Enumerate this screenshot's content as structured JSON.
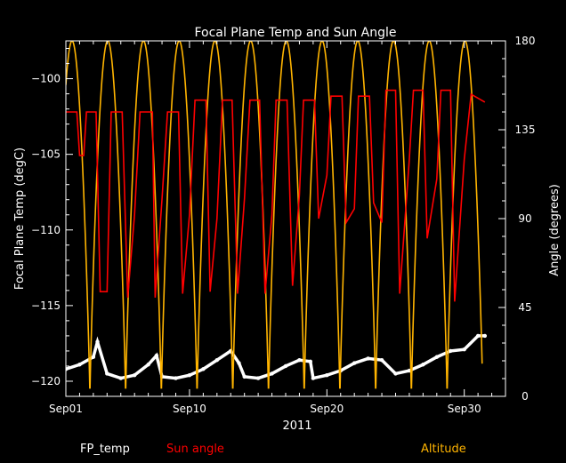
{
  "chart_data": {
    "type": "line",
    "title": "Focal Plane Temp and Sun Angle",
    "xlabel": "2011",
    "ylabel_left": "Focal Plane Temp (degC)",
    "ylabel_right": "Angle (degrees)",
    "x_unit": "day of September 2011",
    "xlim": [
      1,
      33
    ],
    "ylim_left": [
      -121,
      -97.5
    ],
    "ylim_right": [
      0,
      180
    ],
    "x_ticks": [
      {
        "value": 1,
        "label": "Sep01"
      },
      {
        "value": 10,
        "label": "Sep10"
      },
      {
        "value": 20,
        "label": "Sep20"
      },
      {
        "value": 30,
        "label": "Sep30"
      }
    ],
    "y_left_ticks": [
      -100,
      -105,
      -110,
      -115,
      -120
    ],
    "y_right_ticks": [
      0,
      45,
      90,
      135,
      180
    ],
    "grid": false,
    "legend_position": "bottom",
    "colors": {
      "background": "#000000",
      "axes": "#ffffff",
      "fp_temp": "#ffffff",
      "sun_angle": "#ff0000",
      "altitude": "#ffb400"
    },
    "series": [
      {
        "name": "FP_temp",
        "axis": "left",
        "style": "points",
        "x": [
          1.0,
          2.0,
          3.0,
          3.3,
          4.0,
          5.0,
          6.0,
          7.0,
          7.6,
          8.0,
          9.0,
          10.0,
          11.0,
          12.0,
          13.0,
          13.6,
          14.0,
          15.0,
          16.0,
          17.0,
          18.0,
          18.8,
          19.0,
          20.0,
          21.0,
          22.0,
          23.0,
          24.0,
          25.0,
          26.0,
          27.0,
          28.0,
          29.0,
          30.0,
          31.0,
          31.5
        ],
        "y": [
          -119.2,
          -118.9,
          -118.4,
          -117.4,
          -119.5,
          -119.8,
          -119.6,
          -118.9,
          -118.3,
          -119.7,
          -119.8,
          -119.6,
          -119.2,
          -118.6,
          -118.0,
          -118.8,
          -119.7,
          -119.8,
          -119.5,
          -119.0,
          -118.6,
          -118.7,
          -119.8,
          -119.6,
          -119.3,
          -118.8,
          -118.5,
          -118.6,
          -119.5,
          -119.3,
          -118.9,
          -118.4,
          -118.0,
          -117.9,
          -117.0,
          -117.0
        ]
      },
      {
        "name": "Sun angle",
        "axis": "right",
        "style": "line",
        "x": [
          1.0,
          1.8,
          2.0,
          2.3,
          2.5,
          3.2,
          3.5,
          4.0,
          4.3,
          5.1,
          5.5,
          6.0,
          6.4,
          7.3,
          7.5,
          8.0,
          8.4,
          9.2,
          9.5,
          10.0,
          10.4,
          11.2,
          11.5,
          12.0,
          12.4,
          13.1,
          13.5,
          14.0,
          14.4,
          15.1,
          15.5,
          16.0,
          16.3,
          17.1,
          17.5,
          18.0,
          18.3,
          19.1,
          19.4,
          20.0,
          20.3,
          21.1,
          21.4,
          22.0,
          22.3,
          23.1,
          23.4,
          24.0,
          24.3,
          25.0,
          25.3,
          26.0,
          26.3,
          27.0,
          27.3,
          28.0,
          28.3,
          29.0,
          29.3,
          30.0,
          30.5,
          31.5
        ],
        "y": [
          144,
          144,
          122,
          122,
          144,
          144,
          53,
          53,
          144,
          144,
          50,
          92,
          144,
          144,
          50,
          100,
          144,
          144,
          52,
          92,
          150,
          150,
          53,
          90,
          150,
          150,
          52,
          100,
          150,
          150,
          52,
          92,
          150,
          150,
          56,
          102,
          150,
          150,
          90,
          112,
          152,
          152,
          88,
          95,
          152,
          152,
          98,
          88,
          155,
          155,
          52,
          120,
          155,
          155,
          80,
          110,
          155,
          155,
          48,
          120,
          153,
          149
        ]
      },
      {
        "name": "Altitude",
        "axis": "right",
        "style": "line",
        "period_days": 2.6,
        "peaks_x": [
          1.45,
          4.05,
          6.65,
          9.25,
          11.85,
          14.45,
          17.05,
          19.65,
          22.25,
          24.85,
          27.45,
          30.05
        ],
        "minima_x": [
          2.75,
          5.35,
          7.95,
          10.55,
          13.15,
          15.75,
          18.35,
          20.95,
          23.55,
          26.15,
          28.75
        ],
        "peak_value": 180,
        "min_value": 0
      }
    ]
  }
}
